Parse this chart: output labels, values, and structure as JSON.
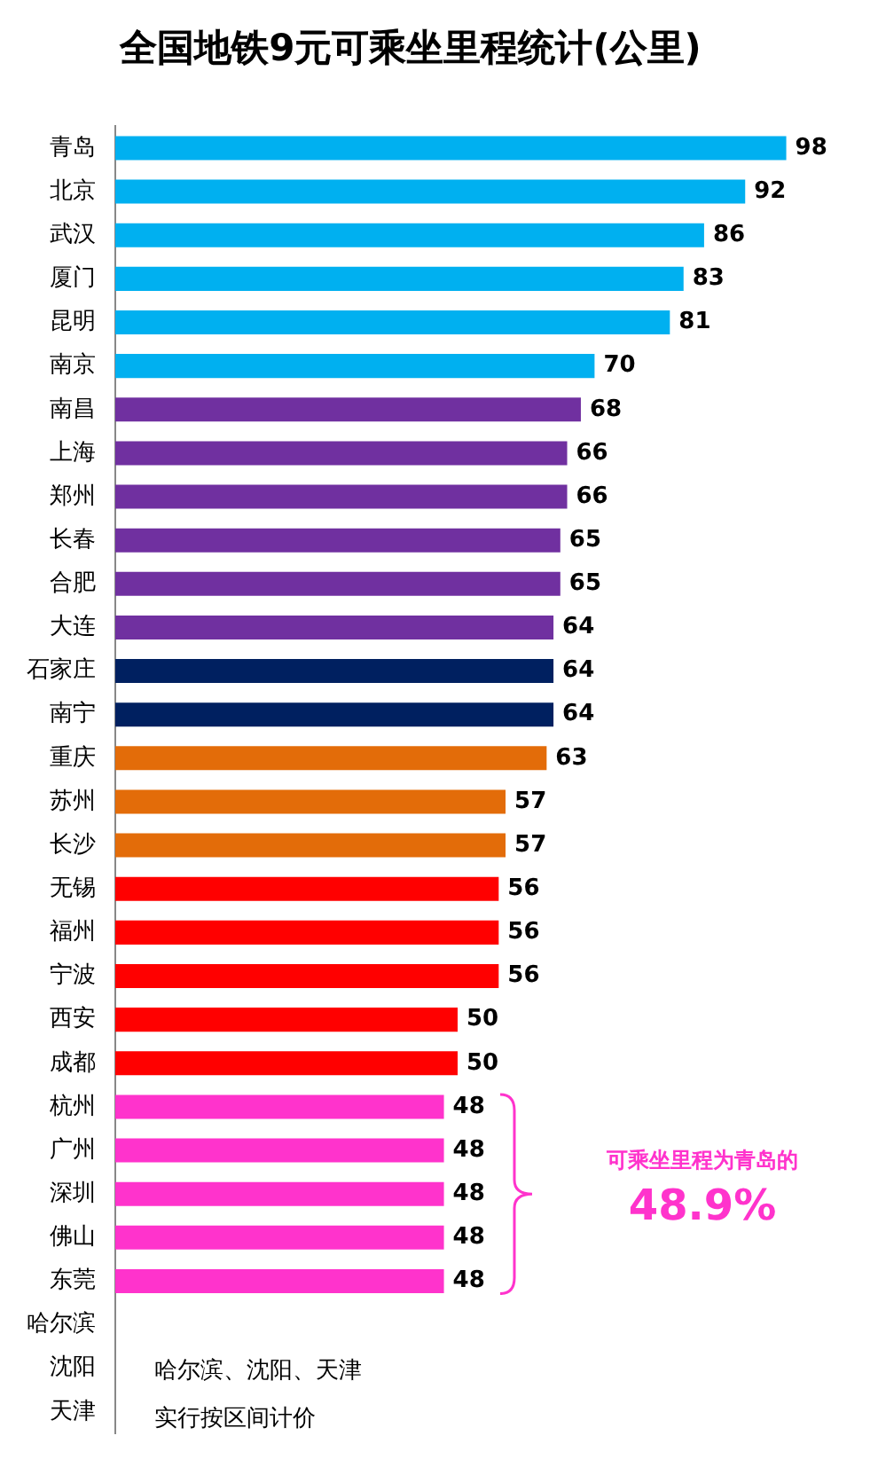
{
  "chart_data": {
    "type": "bar",
    "orientation": "horizontal",
    "title": "全国地铁9元可乘坐里程统计(公里)",
    "categories": [
      "青岛",
      "北京",
      "武汉",
      "厦门",
      "昆明",
      "南京",
      "南昌",
      "上海",
      "郑州",
      "长春",
      "合肥",
      "大连",
      "石家庄",
      "南宁",
      "重庆",
      "苏州",
      "长沙",
      "无锡",
      "福州",
      "宁波",
      "西安",
      "成都",
      "杭州",
      "广州",
      "深圳",
      "佛山",
      "东莞",
      "哈尔滨",
      "沈阳",
      "天津"
    ],
    "values": [
      98,
      92,
      86,
      83,
      81,
      70,
      68,
      66,
      66,
      65,
      65,
      64,
      64,
      64,
      63,
      57,
      57,
      56,
      56,
      56,
      50,
      50,
      48,
      48,
      48,
      48,
      48,
      null,
      null,
      null
    ],
    "colors": [
      "#00b0f0",
      "#00b0f0",
      "#00b0f0",
      "#00b0f0",
      "#00b0f0",
      "#00b0f0",
      "#7030a0",
      "#7030a0",
      "#7030a0",
      "#7030a0",
      "#7030a0",
      "#7030a0",
      "#002060",
      "#002060",
      "#e36c09",
      "#e36c09",
      "#e36c09",
      "#ff0000",
      "#ff0000",
      "#ff0000",
      "#ff0000",
      "#ff0000",
      "#ff33cc",
      "#ff33cc",
      "#ff33cc",
      "#ff33cc",
      "#ff33cc",
      "#ff33cc",
      "#ff33cc",
      "#ff33cc"
    ],
    "data_labels": true,
    "annotations": [
      "哈尔滨、沈阳、天津",
      "实行按区间计价",
      "可乘坐里程为青岛的",
      "48.9%"
    ]
  }
}
